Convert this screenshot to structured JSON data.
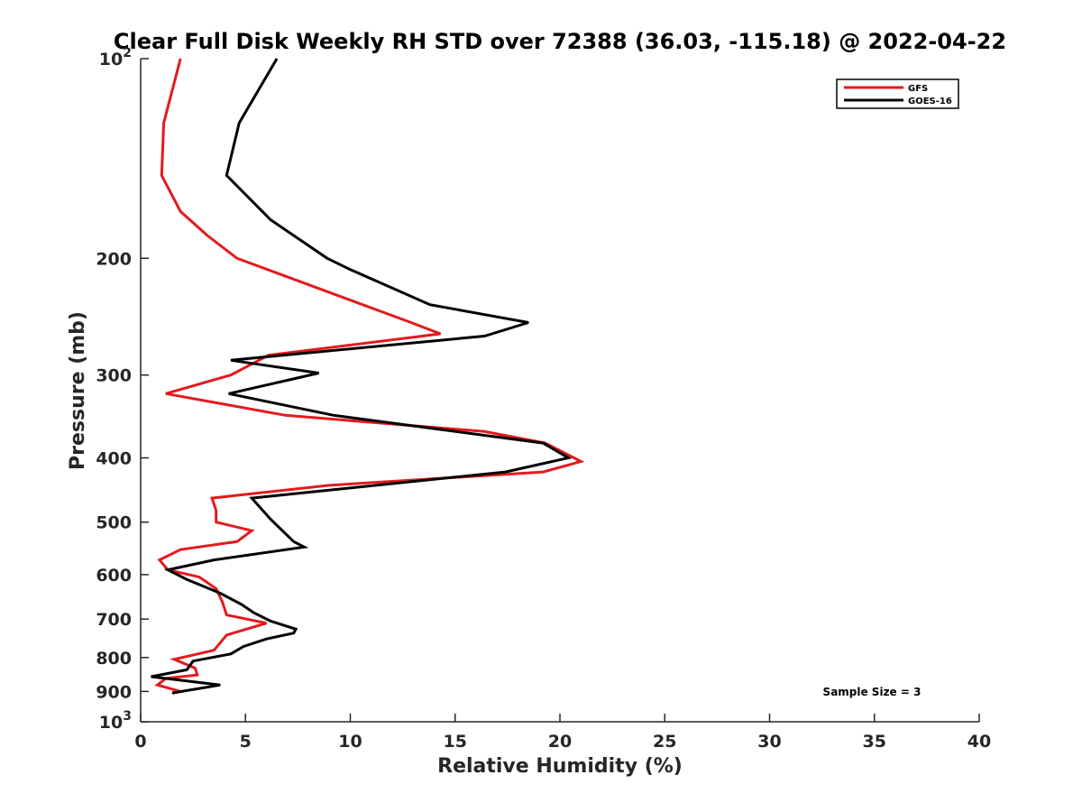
{
  "chart_data": {
    "type": "line",
    "title": "Clear Full Disk Weekly RH STD over 72388 (36.03, -115.18) @ 2022-04-22",
    "xlabel": "Relative Humidity (%)",
    "ylabel": "Pressure (mb)",
    "xlim": [
      0,
      40
    ],
    "ylim": [
      100,
      1000
    ],
    "y_scale": "log",
    "y_reversed": true,
    "x_ticks": [
      {
        "value": 0,
        "label": "0"
      },
      {
        "value": 5,
        "label": "5"
      },
      {
        "value": 10,
        "label": "10"
      },
      {
        "value": 15,
        "label": "15"
      },
      {
        "value": 20,
        "label": "20"
      },
      {
        "value": 25,
        "label": "25"
      },
      {
        "value": 30,
        "label": "30"
      },
      {
        "value": 35,
        "label": "35"
      },
      {
        "value": 40,
        "label": "40"
      }
    ],
    "y_ticks": [
      {
        "value": 100,
        "base": "10",
        "exp": "2"
      },
      {
        "value": 200,
        "label": "200"
      },
      {
        "value": 300,
        "label": "300"
      },
      {
        "value": 400,
        "label": "400"
      },
      {
        "value": 500,
        "label": "500"
      },
      {
        "value": 600,
        "label": "600"
      },
      {
        "value": 700,
        "label": "700"
      },
      {
        "value": 800,
        "label": "800"
      },
      {
        "value": 900,
        "label": "900"
      },
      {
        "value": 1000,
        "base": "10",
        "exp": "3"
      }
    ],
    "grid": false,
    "legend_position": "top-right",
    "annotation": "Sample Size = 3",
    "series": [
      {
        "name": "GFS",
        "color": "#e41a1c",
        "points": [
          [
            1.9,
            100
          ],
          [
            1.1,
            125
          ],
          [
            1.0,
            150
          ],
          [
            1.9,
            170
          ],
          [
            3.2,
            185
          ],
          [
            4.6,
            200
          ],
          [
            12.9,
            250
          ],
          [
            14.3,
            260
          ],
          [
            6.1,
            280
          ],
          [
            4.3,
            300
          ],
          [
            1.2,
            320
          ],
          [
            6.9,
            345
          ],
          [
            16.4,
            365
          ],
          [
            19.3,
            380
          ],
          [
            21.0,
            405
          ],
          [
            19.2,
            420
          ],
          [
            9.0,
            440
          ],
          [
            3.4,
            460
          ],
          [
            3.6,
            480
          ],
          [
            3.6,
            500
          ],
          [
            5.3,
            515
          ],
          [
            4.6,
            535
          ],
          [
            1.9,
            550
          ],
          [
            0.9,
            570
          ],
          [
            1.3,
            590
          ],
          [
            2.8,
            605
          ],
          [
            3.6,
            630
          ],
          [
            3.9,
            660
          ],
          [
            4.1,
            690
          ],
          [
            6.0,
            710
          ],
          [
            4.1,
            740
          ],
          [
            3.5,
            780
          ],
          [
            1.6,
            805
          ],
          [
            2.6,
            830
          ],
          [
            2.7,
            850
          ],
          [
            1.2,
            860
          ],
          [
            0.8,
            880
          ],
          [
            1.9,
            900
          ],
          [
            1.5,
            905
          ]
        ]
      },
      {
        "name": "GOES-16",
        "color": "#000000",
        "points": [
          [
            6.5,
            100
          ],
          [
            4.7,
            125
          ],
          [
            4.1,
            150
          ],
          [
            6.2,
            175
          ],
          [
            8.9,
            200
          ],
          [
            10.0,
            208
          ],
          [
            13.8,
            235
          ],
          [
            18.5,
            250
          ],
          [
            16.4,
            262
          ],
          [
            4.3,
            285
          ],
          [
            8.5,
            298
          ],
          [
            4.2,
            320
          ],
          [
            9.2,
            345
          ],
          [
            19.2,
            380
          ],
          [
            20.4,
            400
          ],
          [
            17.4,
            420
          ],
          [
            5.3,
            460
          ],
          [
            6.2,
            495
          ],
          [
            7.3,
            535
          ],
          [
            7.8,
            545
          ],
          [
            3.5,
            570
          ],
          [
            1.3,
            590
          ],
          [
            2.2,
            610
          ],
          [
            3.8,
            640
          ],
          [
            4.8,
            665
          ],
          [
            5.4,
            685
          ],
          [
            6.2,
            705
          ],
          [
            7.4,
            725
          ],
          [
            7.3,
            735
          ],
          [
            6.0,
            750
          ],
          [
            4.9,
            770
          ],
          [
            4.3,
            790
          ],
          [
            2.5,
            810
          ],
          [
            2.2,
            835
          ],
          [
            0.5,
            855
          ],
          [
            3.8,
            880
          ],
          [
            1.5,
            905
          ]
        ]
      }
    ]
  }
}
